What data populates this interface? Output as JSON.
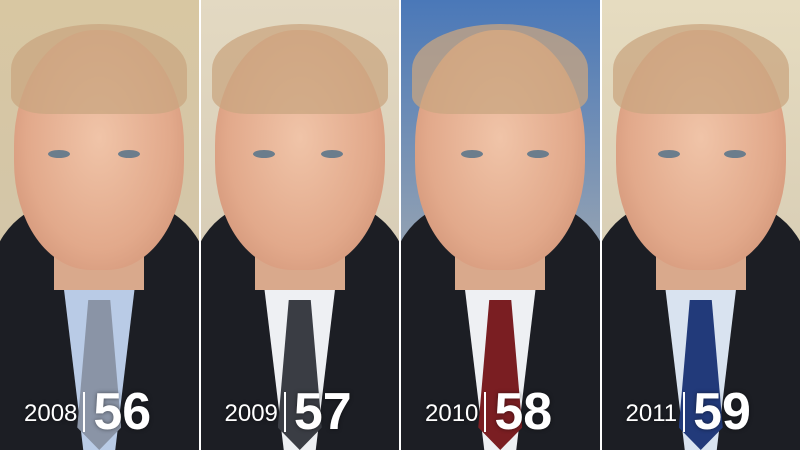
{
  "panels": [
    {
      "year": "2008",
      "age": "56",
      "bg": "#d8c7a2",
      "tie": "#8a94a6",
      "shirt": "#b9cbe6"
    },
    {
      "year": "2009",
      "age": "57",
      "bg": "#e3d9c2",
      "tie": "#3a3d44",
      "shirt": "#eef0f3"
    },
    {
      "year": "2010",
      "age": "58",
      "bg": "#4a78b8",
      "tie": "#7a1e22",
      "shirt": "#eef0f3"
    },
    {
      "year": "2011",
      "age": "59",
      "bg": "#e6dcc0",
      "tie": "#223a7a",
      "shirt": "#d9e3f0"
    }
  ]
}
